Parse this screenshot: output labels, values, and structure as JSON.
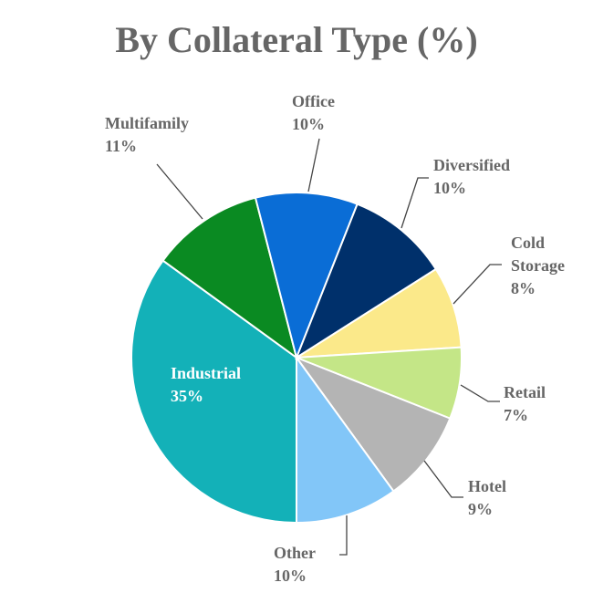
{
  "chart_data": {
    "type": "pie",
    "title": "By Collateral Type (%)",
    "categories": [
      "Industrial",
      "Multifamily",
      "Office",
      "Diversified",
      "Cold Storage",
      "Retail",
      "Hotel",
      "Other"
    ],
    "values": [
      35,
      11,
      10,
      10,
      8,
      7,
      9,
      10
    ],
    "value_labels": [
      "35%",
      "11%",
      "10%",
      "10%",
      "8%",
      "7%",
      "9%",
      "10%"
    ],
    "colors": [
      "#13b1b8",
      "#0a8a22",
      "#0a6dd6",
      "#00306b",
      "#fbe98a",
      "#c4e687",
      "#b4b4b4",
      "#82c6f8"
    ]
  }
}
